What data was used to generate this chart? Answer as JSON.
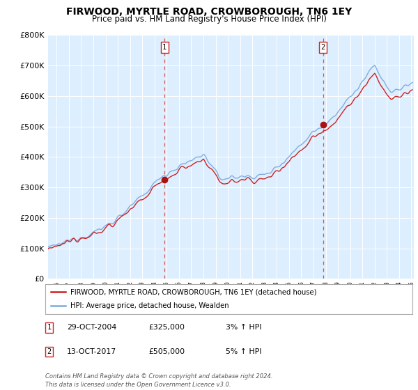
{
  "title": "FIRWOOD, MYRTLE ROAD, CROWBOROUGH, TN6 1EY",
  "subtitle": "Price paid vs. HM Land Registry's House Price Index (HPI)",
  "legend_line1": "FIRWOOD, MYRTLE ROAD, CROWBOROUGH, TN6 1EY (detached house)",
  "legend_line2": "HPI: Average price, detached house, Wealden",
  "annotation1": {
    "num": "1",
    "date": "29-OCT-2004",
    "price": "£325,000",
    "pct": "3% ↑ HPI"
  },
  "annotation2": {
    "num": "2",
    "date": "13-OCT-2017",
    "price": "£505,000",
    "pct": "5% ↑ HPI"
  },
  "footer": "Contains HM Land Registry data © Crown copyright and database right 2024.\nThis data is licensed under the Open Government Licence v3.0.",
  "sale1_year": 2004.83,
  "sale1_value": 325000,
  "sale2_year": 2017.78,
  "sale2_value": 505000,
  "hpi_color": "#7aaadd",
  "price_color": "#cc2222",
  "sale_marker_color": "#aa1111",
  "bg_color": "#ddeeff",
  "ylim": [
    0,
    800000
  ],
  "xlim_start": 1995.3,
  "xlim_end": 2025.2
}
